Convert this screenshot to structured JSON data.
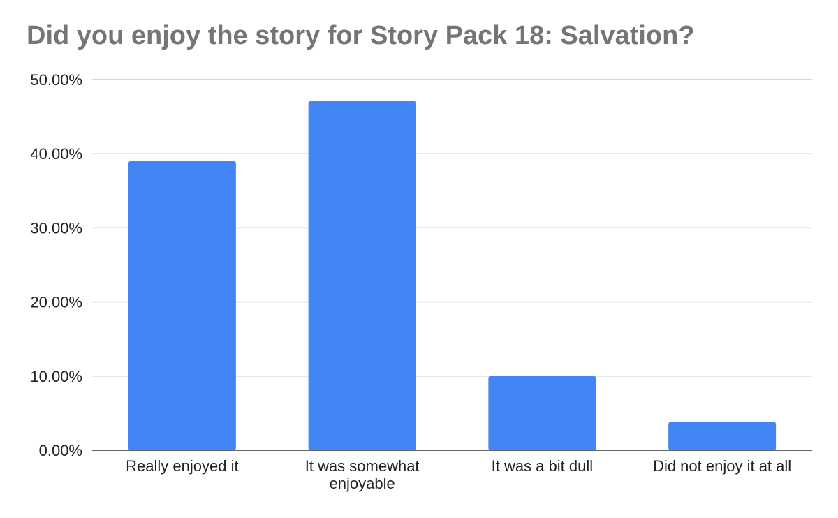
{
  "chart_data": {
    "type": "bar",
    "title": "Did you enjoy the story for Story Pack 18: Salvation?",
    "categories": [
      [
        "Really enjoyed it"
      ],
      [
        "It was somewhat",
        "enjoyable"
      ],
      [
        "It was a bit dull"
      ],
      [
        "Did not enjoy it at all"
      ]
    ],
    "values": [
      39.0,
      47.1,
      10.0,
      3.8
    ],
    "ylim": [
      0,
      50
    ],
    "yticks": [
      0,
      10,
      20,
      30,
      40,
      50
    ],
    "ytick_labels": [
      "0.00%",
      "10.00%",
      "20.00%",
      "30.00%",
      "40.00%",
      "50.00%"
    ],
    "grid": true,
    "legend": "none",
    "bar_color": "#4285f4",
    "grid_color": "#cccccc",
    "axis_color": "#333333"
  }
}
